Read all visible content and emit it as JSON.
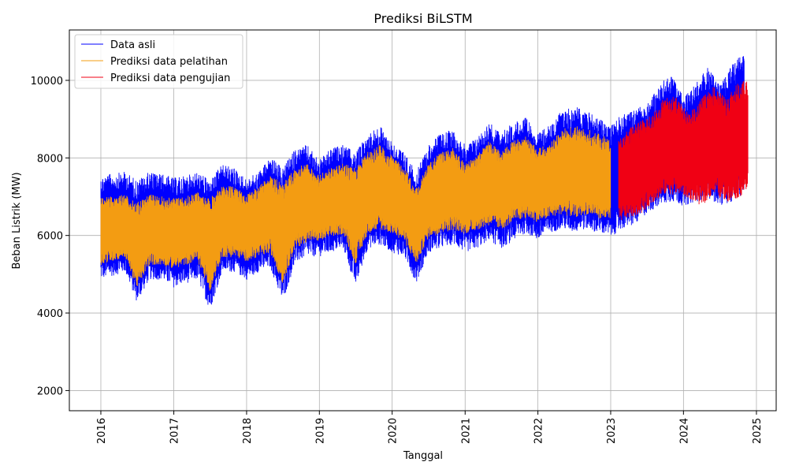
{
  "chart_data": {
    "type": "line",
    "title": "Prediksi BiLSTM",
    "xlabel": "Tanggal",
    "ylabel": "Beban Listrik (MW)",
    "x_ticks": [
      "2016",
      "2017",
      "2018",
      "2019",
      "2020",
      "2021",
      "2022",
      "2023",
      "2024",
      "2025"
    ],
    "y_ticks": [
      "2000",
      "4000",
      "6000",
      "8000",
      "10000"
    ],
    "xlim": [
      "2015-07-27",
      "2025-04-10"
    ],
    "ylim": [
      1480,
      11300
    ],
    "grid": true,
    "legend_position": "top-left",
    "split_date": "2023-02-10",
    "series": [
      {
        "name": "Data asli",
        "color": "#0000ff",
        "x": [
          "2016-01-01",
          "2016-03-01",
          "2016-05-01",
          "2016-07-01",
          "2016-09-01",
          "2016-11-01",
          "2017-01-01",
          "2017-03-01",
          "2017-05-01",
          "2017-07-01",
          "2017-09-01",
          "2017-11-01",
          "2018-01-01",
          "2018-03-01",
          "2018-05-01",
          "2018-07-01",
          "2018-09-01",
          "2018-11-01",
          "2019-01-01",
          "2019-03-01",
          "2019-05-01",
          "2019-07-01",
          "2019-09-01",
          "2019-11-01",
          "2020-01-01",
          "2020-03-01",
          "2020-05-01",
          "2020-07-01",
          "2020-09-01",
          "2020-11-01",
          "2021-01-01",
          "2021-03-01",
          "2021-05-01",
          "2021-07-01",
          "2021-09-01",
          "2021-11-01",
          "2022-01-01",
          "2022-03-01",
          "2022-05-01",
          "2022-07-01",
          "2022-09-01",
          "2022-11-01",
          "2023-01-01",
          "2023-03-01",
          "2023-05-01",
          "2023-07-01",
          "2023-09-01",
          "2023-11-01",
          "2024-01-01",
          "2024-03-01",
          "2024-05-01",
          "2024-07-01",
          "2024-09-01",
          "2024-11-01"
        ],
        "upper": [
          7600,
          7650,
          7700,
          7500,
          7700,
          7650,
          7550,
          7600,
          7700,
          7500,
          7900,
          7800,
          7500,
          7700,
          8100,
          7800,
          8300,
          8400,
          8000,
          8300,
          8400,
          8200,
          8700,
          8900,
          8500,
          8200,
          7700,
          8400,
          8700,
          8800,
          8400,
          8600,
          9000,
          8700,
          9000,
          9100,
          8700,
          8900,
          9300,
          9400,
          9300,
          9100,
          8900,
          9200,
          9300,
          9500,
          9900,
          10300,
          9600,
          10000,
          10400,
          10000,
          10500,
          10800
        ],
        "lower": [
          4800,
          4900,
          5000,
          4200,
          4800,
          4800,
          4600,
          4700,
          4800,
          4000,
          5000,
          5000,
          4800,
          5000,
          5100,
          4200,
          5200,
          5400,
          5400,
          5500,
          5600,
          4600,
          5600,
          5700,
          5500,
          5400,
          4700,
          5500,
          5600,
          5700,
          5500,
          5600,
          5800,
          5600,
          5800,
          6000,
          5800,
          6000,
          6100,
          6000,
          6100,
          6000,
          5900,
          6100,
          6200,
          6500,
          6700,
          6800,
          6700,
          6800,
          6900,
          6700,
          6800,
          7000
        ]
      },
      {
        "name": "Prediksi data pelatihan",
        "color": "#f39c12",
        "x": [
          "2016-01-01",
          "2016-03-01",
          "2016-05-01",
          "2016-07-01",
          "2016-09-01",
          "2016-11-01",
          "2017-01-01",
          "2017-03-01",
          "2017-05-01",
          "2017-07-01",
          "2017-09-01",
          "2017-11-01",
          "2018-01-01",
          "2018-03-01",
          "2018-05-01",
          "2018-07-01",
          "2018-09-01",
          "2018-11-01",
          "2019-01-01",
          "2019-03-01",
          "2019-05-01",
          "2019-07-01",
          "2019-09-01",
          "2019-11-01",
          "2020-01-01",
          "2020-03-01",
          "2020-05-01",
          "2020-07-01",
          "2020-09-01",
          "2020-11-01",
          "2021-01-01",
          "2021-03-01",
          "2021-05-01",
          "2021-07-01",
          "2021-09-01",
          "2021-11-01",
          "2022-01-01",
          "2022-03-01",
          "2022-05-01",
          "2022-07-01",
          "2022-09-01",
          "2022-11-01",
          "2023-01-01"
        ],
        "upper": [
          7000,
          7050,
          7100,
          6900,
          7100,
          7050,
          7000,
          7050,
          7150,
          7000,
          7350,
          7300,
          7100,
          7300,
          7600,
          7400,
          7800,
          7900,
          7600,
          7800,
          7900,
          7800,
          8200,
          8400,
          8100,
          7800,
          7300,
          7900,
          8200,
          8300,
          7900,
          8100,
          8500,
          8200,
          8500,
          8600,
          8300,
          8400,
          8800,
          8900,
          8800,
          8700,
          8500
        ],
        "lower": [
          5200,
          5300,
          5400,
          4600,
          5200,
          5200,
          5100,
          5200,
          5300,
          4500,
          5400,
          5400,
          5300,
          5400,
          5500,
          4700,
          5600,
          5800,
          5800,
          5900,
          6000,
          5200,
          6000,
          6100,
          6000,
          5800,
          5200,
          5900,
          6000,
          6100,
          6000,
          6100,
          6200,
          6100,
          6300,
          6400,
          6300,
          6400,
          6500,
          6400,
          6500,
          6400,
          6300
        ]
      },
      {
        "name": "Prediksi data pengujian",
        "color": "#f00014",
        "x": [
          "2023-02-10",
          "2023-04-01",
          "2023-06-01",
          "2023-08-01",
          "2023-10-01",
          "2023-12-01",
          "2024-02-01",
          "2024-04-01",
          "2024-06-01",
          "2024-08-01",
          "2024-10-01",
          "2024-11-20"
        ],
        "upper": [
          8500,
          8800,
          9000,
          9200,
          9700,
          9600,
          9200,
          9600,
          9900,
          9600,
          10000,
          10100
        ],
        "lower": [
          6300,
          6400,
          6500,
          6800,
          7000,
          7000,
          6900,
          6700,
          7000,
          6800,
          6900,
          7100
        ]
      }
    ]
  }
}
